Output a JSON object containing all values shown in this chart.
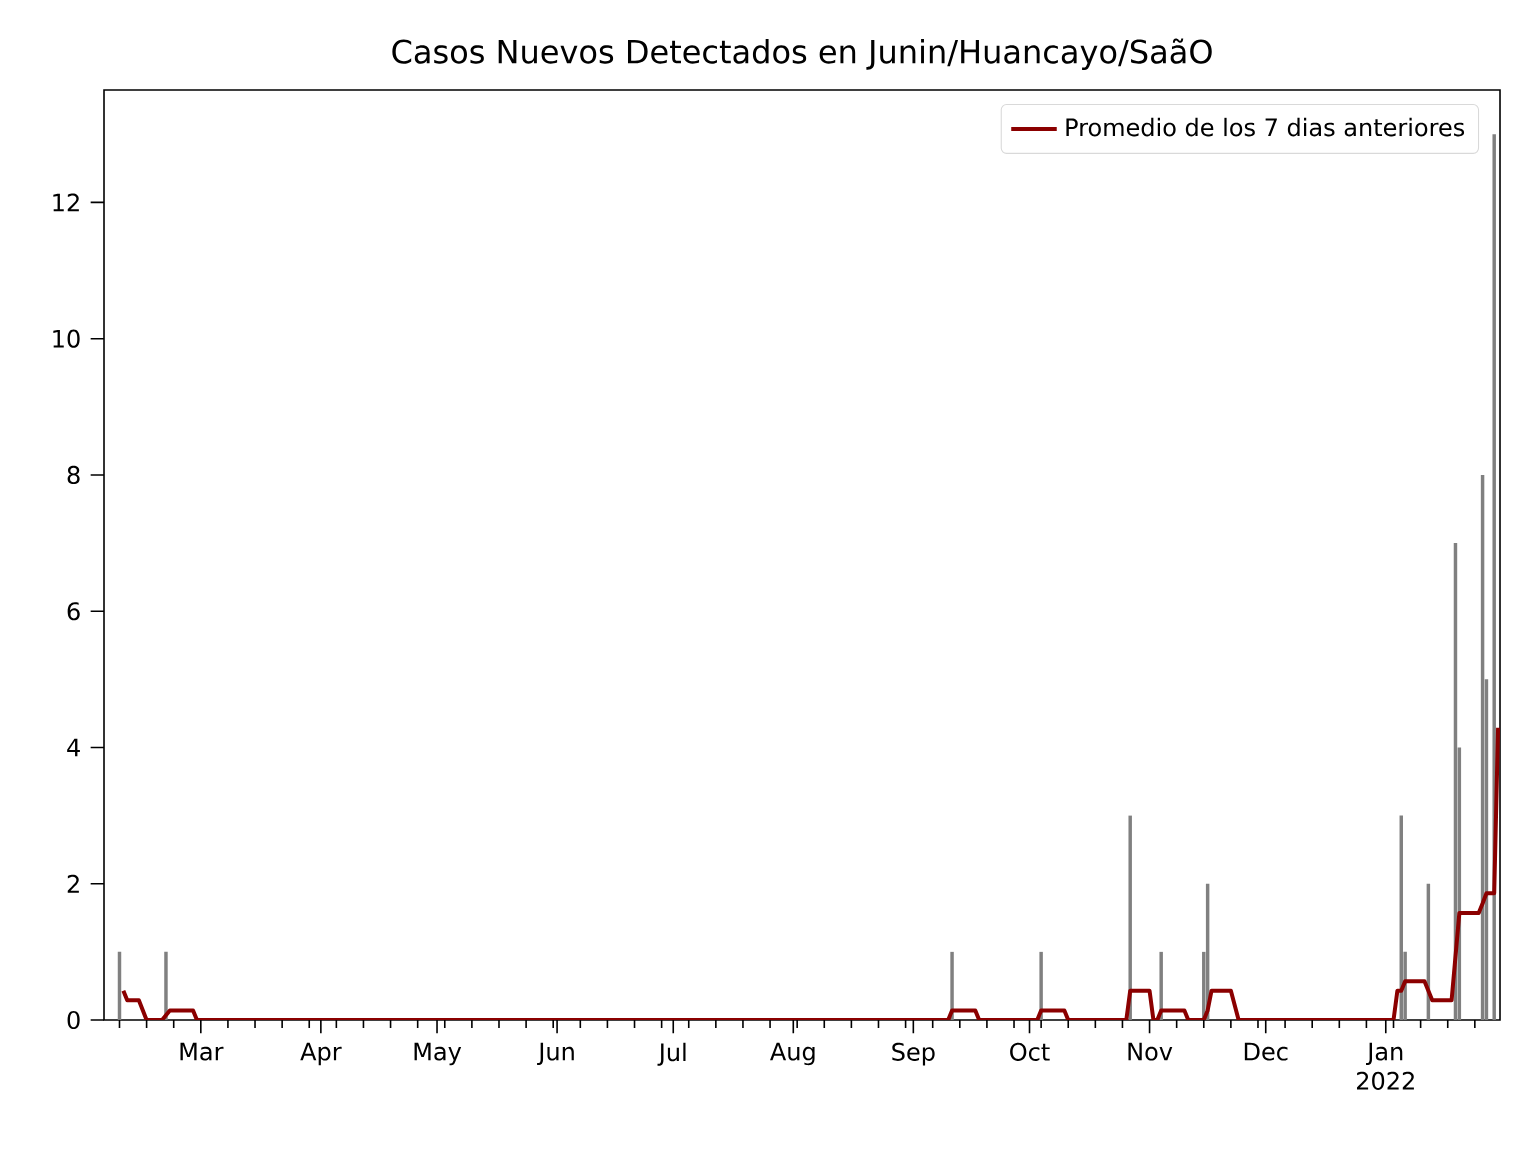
{
  "chart_data": {
    "type": "bar",
    "title": "Casos Nuevos Detectados en Junin/Huancayo/SaãO",
    "series": [
      {
        "color": "#808080",
        "x": [
          "2021-02-08",
          "2021-02-20",
          "2021-09-11",
          "2021-10-04",
          "2021-10-27",
          "2021-11-04",
          "2021-11-15",
          "2021-11-16",
          "2022-01-05",
          "2022-01-06",
          "2022-01-12",
          "2022-01-19",
          "2022-01-20",
          "2022-01-26",
          "2022-01-27",
          "2022-01-29"
        ],
        "values": [
          1,
          1,
          1,
          1,
          3,
          1,
          1,
          2,
          3,
          1,
          2,
          7,
          4,
          8,
          5,
          13
        ]
      },
      {
        "type": "line",
        "name": "Promedio de los 7 dias anteriores",
        "color": "#8b0000",
        "x": [
          "2021-02-09",
          "2021-02-10",
          "2021-02-13",
          "2021-02-15",
          "2021-02-19",
          "2021-02-21",
          "2021-02-27",
          "2021-02-28",
          "2021-09-10",
          "2021-09-11",
          "2021-09-17",
          "2021-09-18",
          "2021-10-03",
          "2021-10-04",
          "2021-10-10",
          "2021-10-11",
          "2021-10-26",
          "2021-10-27",
          "2021-11-01",
          "2021-11-02",
          "2021-11-03",
          "2021-11-04",
          "2021-11-10",
          "2021-11-11",
          "2021-11-15",
          "2021-11-16",
          "2021-11-17",
          "2021-11-22",
          "2021-11-24",
          "2022-01-03",
          "2022-01-04",
          "2022-01-05",
          "2022-01-06",
          "2022-01-11",
          "2022-01-12",
          "2022-01-13",
          "2022-01-18",
          "2022-01-20",
          "2022-01-25",
          "2022-01-26",
          "2022-01-27",
          "2022-01-29",
          "2022-01-30"
        ],
        "values": [
          0.43,
          0.29,
          0.29,
          0,
          0,
          0.14,
          0.14,
          0,
          0,
          0.14,
          0.14,
          0,
          0,
          0.14,
          0.14,
          0,
          0,
          0.43,
          0.43,
          0,
          0,
          0.14,
          0.14,
          0,
          0,
          0.14,
          0.43,
          0.43,
          0,
          0,
          0.43,
          0.43,
          0.57,
          0.57,
          0.43,
          0.29,
          0.29,
          1.57,
          1.57,
          1.71,
          1.86,
          1.86,
          4.29
        ]
      }
    ],
    "xlim": [
      "2021-02-04",
      "2022-01-30T12:00"
    ],
    "xticks": [
      {
        "value": "2021-03-01",
        "label": "Mar"
      },
      {
        "value": "2021-04-01",
        "label": "Apr"
      },
      {
        "value": "2021-05-01",
        "label": "May"
      },
      {
        "value": "2021-06-01",
        "label": "Jun"
      },
      {
        "value": "2021-07-01",
        "label": "Jul"
      },
      {
        "value": "2021-08-01",
        "label": "Aug"
      },
      {
        "value": "2021-09-01",
        "label": "Sep"
      },
      {
        "value": "2021-10-01",
        "label": "Oct"
      },
      {
        "value": "2021-11-01",
        "label": "Nov"
      },
      {
        "value": "2021-12-01",
        "label": "Dec"
      },
      {
        "value": "2022-01-01",
        "label": "Jan 2022"
      },
      {
        "value": "2021-02-08",
        "label": null
      },
      {
        "value": "2021-02-15",
        "label": null
      },
      {
        "value": "2021-02-22",
        "label": null
      },
      {
        "value": "2021-03-08",
        "label": null
      },
      {
        "value": "2021-03-15",
        "label": null
      },
      {
        "value": "2021-03-22",
        "label": null
      },
      {
        "value": "2021-03-29",
        "label": null
      },
      {
        "value": "2021-04-05",
        "label": null
      },
      {
        "value": "2021-04-12",
        "label": null
      },
      {
        "value": "2021-04-19",
        "label": null
      },
      {
        "value": "2021-04-26",
        "label": null
      },
      {
        "value": "2021-05-03",
        "label": null
      },
      {
        "value": "2021-05-10",
        "label": null
      },
      {
        "value": "2021-05-17",
        "label": null
      },
      {
        "value": "2021-05-24",
        "label": null
      },
      {
        "value": "2021-05-31",
        "label": null
      },
      {
        "value": "2021-06-07",
        "label": null
      },
      {
        "value": "2021-06-14",
        "label": null
      },
      {
        "value": "2021-06-21",
        "label": null
      },
      {
        "value": "2021-06-28",
        "label": null
      },
      {
        "value": "2021-07-05",
        "label": null
      },
      {
        "value": "2021-07-12",
        "label": null
      },
      {
        "value": "2021-07-19",
        "label": null
      },
      {
        "value": "2021-07-26",
        "label": null
      },
      {
        "value": "2021-08-02",
        "label": null
      },
      {
        "value": "2021-08-09",
        "label": null
      },
      {
        "value": "2021-08-16",
        "label": null
      },
      {
        "value": "2021-08-23",
        "label": null
      },
      {
        "value": "2021-08-30",
        "label": null
      },
      {
        "value": "2021-09-06",
        "label": null
      },
      {
        "value": "2021-09-13",
        "label": null
      },
      {
        "value": "2021-09-20",
        "label": null
      },
      {
        "value": "2021-09-27",
        "label": null
      },
      {
        "value": "2021-10-04",
        "label": null
      },
      {
        "value": "2021-10-11",
        "label": null
      },
      {
        "value": "2021-10-18",
        "label": null
      },
      {
        "value": "2021-10-25",
        "label": null
      },
      {
        "value": "2021-11-08",
        "label": null
      },
      {
        "value": "2021-11-15",
        "label": null
      },
      {
        "value": "2021-11-22",
        "label": null
      },
      {
        "value": "2021-11-29",
        "label": null
      },
      {
        "value": "2021-12-06",
        "label": null
      },
      {
        "value": "2021-12-13",
        "label": null
      },
      {
        "value": "2021-12-20",
        "label": null
      },
      {
        "value": "2021-12-27",
        "label": null
      },
      {
        "value": "2022-01-03",
        "label": null
      },
      {
        "value": "2022-01-10",
        "label": null
      },
      {
        "value": "2022-01-17",
        "label": null
      },
      {
        "value": "2022-01-24",
        "label": null
      }
    ],
    "ylim": [
      0,
      13.65
    ],
    "yticks": [
      0,
      2,
      4,
      6,
      8,
      10,
      12
    ],
    "legend": "top right"
  }
}
